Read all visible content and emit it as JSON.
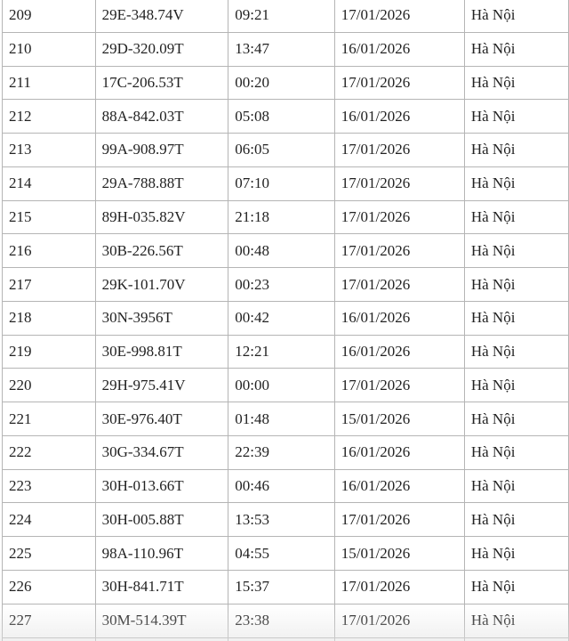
{
  "rows": [
    {
      "no": "209",
      "plate": "29E-348.74V",
      "time": "09:21",
      "date": "17/01/2026",
      "place": "Hà Nội"
    },
    {
      "no": "210",
      "plate": "29D-320.09T",
      "time": "13:47",
      "date": "16/01/2026",
      "place": "Hà Nội"
    },
    {
      "no": "211",
      "plate": "17C-206.53T",
      "time": "00:20",
      "date": "17/01/2026",
      "place": "Hà Nội"
    },
    {
      "no": "212",
      "plate": "88A-842.03T",
      "time": "05:08",
      "date": "16/01/2026",
      "place": "Hà Nội"
    },
    {
      "no": "213",
      "plate": "99A-908.97T",
      "time": "06:05",
      "date": "17/01/2026",
      "place": "Hà Nội"
    },
    {
      "no": "214",
      "plate": "29A-788.88T",
      "time": "07:10",
      "date": "17/01/2026",
      "place": "Hà Nội"
    },
    {
      "no": "215",
      "plate": "89H-035.82V",
      "time": "21:18",
      "date": "17/01/2026",
      "place": "Hà Nội"
    },
    {
      "no": "216",
      "plate": "30B-226.56T",
      "time": "00:48",
      "date": "17/01/2026",
      "place": "Hà Nội"
    },
    {
      "no": "217",
      "plate": "29K-101.70V",
      "time": "00:23",
      "date": "17/01/2026",
      "place": "Hà Nội"
    },
    {
      "no": "218",
      "plate": "30N-3956T",
      "time": "00:42",
      "date": "16/01/2026",
      "place": "Hà Nội"
    },
    {
      "no": "219",
      "plate": "30E-998.81T",
      "time": "12:21",
      "date": "16/01/2026",
      "place": "Hà Nội"
    },
    {
      "no": "220",
      "plate": "29H-975.41V",
      "time": "00:00",
      "date": "17/01/2026",
      "place": "Hà Nội"
    },
    {
      "no": "221",
      "plate": "30E-976.40T",
      "time": "01:48",
      "date": "15/01/2026",
      "place": "Hà Nội"
    },
    {
      "no": "222",
      "plate": "30G-334.67T",
      "time": "22:39",
      "date": "16/01/2026",
      "place": "Hà Nội"
    },
    {
      "no": "223",
      "plate": "30H-013.66T",
      "time": "00:46",
      "date": "16/01/2026",
      "place": "Hà Nội"
    },
    {
      "no": "224",
      "plate": "30H-005.88T",
      "time": "13:53",
      "date": "17/01/2026",
      "place": "Hà Nội"
    },
    {
      "no": "225",
      "plate": "98A-110.96T",
      "time": "04:55",
      "date": "15/01/2026",
      "place": "Hà Nội"
    },
    {
      "no": "226",
      "plate": "30H-841.71T",
      "time": "15:37",
      "date": "17/01/2026",
      "place": "Hà Nội"
    },
    {
      "no": "227",
      "plate": "30M-514.39T",
      "time": "23:38",
      "date": "17/01/2026",
      "place": "Hà Nội"
    },
    {
      "no": "",
      "plate": "",
      "time": "",
      "date": "",
      "place": ""
    }
  ]
}
